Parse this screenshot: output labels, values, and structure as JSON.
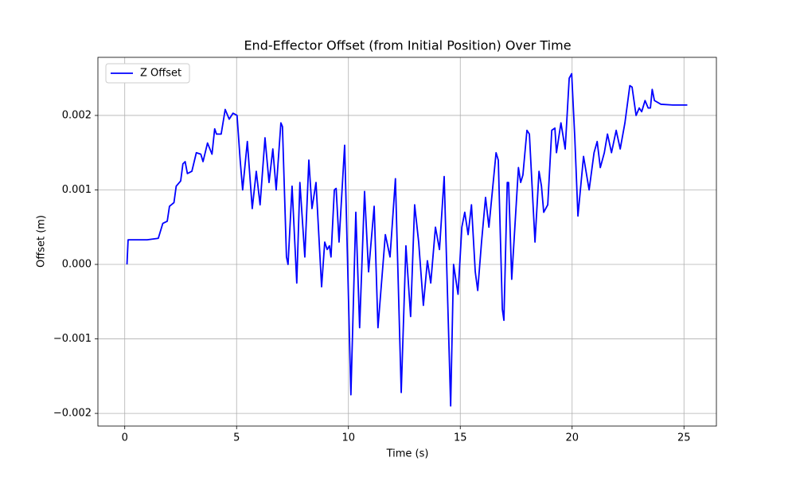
{
  "chart_data": {
    "type": "line",
    "title": "End-Effector Offset (from Initial Position) Over Time",
    "xlabel": "Time (s)",
    "ylabel": "Offset (m)",
    "x": [
      0.1,
      0.15,
      0.3,
      1.0,
      1.5,
      1.7,
      1.9,
      2.0,
      2.2,
      2.3,
      2.5,
      2.6,
      2.7,
      2.8,
      3.0,
      3.2,
      3.4,
      3.5,
      3.7,
      3.9,
      4.02,
      4.1,
      4.31,
      4.49,
      4.67,
      4.84,
      5.02,
      5.16,
      5.27,
      5.48,
      5.7,
      5.88,
      6.05,
      6.27,
      6.45,
      6.62,
      6.77,
      6.98,
      7.05,
      7.23,
      7.3,
      7.48,
      7.69,
      7.83,
      8.05,
      8.23,
      8.37,
      8.55,
      8.8,
      8.94,
      9.05,
      9.15,
      9.22,
      9.37,
      9.45,
      9.58,
      9.83,
      10.11,
      10.33,
      10.5,
      10.72,
      10.9,
      11.15,
      11.32,
      11.65,
      11.86,
      12.1,
      12.36,
      12.57,
      12.78,
      12.96,
      13.14,
      13.35,
      13.53,
      13.68,
      13.89,
      14.07,
      14.28,
      14.57,
      14.7,
      14.9,
      15.07,
      15.2,
      15.35,
      15.5,
      15.67,
      15.78,
      15.95,
      16.13,
      16.28,
      16.6,
      16.7,
      16.88,
      16.95,
      17.1,
      17.16,
      17.3,
      17.6,
      17.7,
      17.8,
      17.98,
      18.09,
      18.34,
      18.52,
      18.63,
      18.73,
      18.91,
      19.09,
      19.23,
      19.3,
      19.5,
      19.69,
      19.87,
      19.98,
      20.12,
      20.26,
      20.51,
      20.76,
      20.98,
      21.12,
      21.26,
      21.44,
      21.58,
      21.76,
      21.97,
      22.15,
      22.36,
      22.58,
      22.68,
      22.86,
      23.0,
      23.11,
      23.26,
      23.4,
      23.5,
      23.58,
      23.68,
      23.97,
      24.5,
      25.15
    ],
    "series": [
      {
        "name": "Z Offset",
        "color": "#0000ff",
        "values": [
          0.0,
          0.00033,
          0.00033,
          0.00033,
          0.00035,
          0.00055,
          0.00058,
          0.00078,
          0.00083,
          0.00105,
          0.00112,
          0.00135,
          0.00138,
          0.00122,
          0.00125,
          0.0015,
          0.00148,
          0.00138,
          0.00163,
          0.00148,
          0.00182,
          0.00175,
          0.00175,
          0.00208,
          0.00195,
          0.00203,
          0.002,
          0.0014,
          0.001,
          0.00165,
          0.00075,
          0.00125,
          0.0008,
          0.0017,
          0.0011,
          0.00155,
          0.001,
          0.0019,
          0.00185,
          0.0001,
          0.0,
          0.00105,
          -0.00025,
          0.0011,
          0.0001,
          0.0014,
          0.00075,
          0.0011,
          -0.0003,
          0.0003,
          0.0002,
          0.00025,
          0.0001,
          0.001,
          0.00102,
          0.0003,
          0.0016,
          -0.00175,
          0.0007,
          -0.00085,
          0.00098,
          -0.0001,
          0.00078,
          -0.00085,
          0.0004,
          0.0001,
          0.00115,
          -0.00172,
          0.00025,
          -0.0007,
          0.0008,
          0.0003,
          -0.00055,
          5e-05,
          -0.00025,
          0.0005,
          0.0002,
          0.00118,
          -0.0019,
          0.0,
          -0.0004,
          0.0005,
          0.0007,
          0.0004,
          0.0008,
          -0.0001,
          -0.00035,
          0.0003,
          0.0009,
          0.0005,
          0.0015,
          0.0014,
          -0.0006,
          -0.00075,
          0.0011,
          0.0011,
          -0.0002,
          0.0013,
          0.0011,
          0.0012,
          0.0018,
          0.00175,
          0.0003,
          0.00125,
          0.00105,
          0.0007,
          0.0008,
          0.0018,
          0.00183,
          0.0015,
          0.0019,
          0.00155,
          0.0025,
          0.00256,
          0.0017,
          0.00065,
          0.00145,
          0.001,
          0.0015,
          0.00165,
          0.0013,
          0.0015,
          0.00175,
          0.0015,
          0.0018,
          0.00155,
          0.0019,
          0.0024,
          0.00238,
          0.002,
          0.0021,
          0.00205,
          0.0022,
          0.0021,
          0.0021,
          0.00235,
          0.0022,
          0.00215,
          0.00214,
          0.00214
        ]
      }
    ],
    "xlim": [
      -1.2,
      26.45
    ],
    "xticks": [
      0,
      5,
      10,
      15,
      20,
      25
    ],
    "ylim": [
      -0.00217,
      0.00278
    ],
    "yticks": [
      {
        "value": -0.002,
        "label": "−0.002"
      },
      {
        "value": -0.001,
        "label": "−0.001"
      },
      {
        "value": 0,
        "label": "0.000"
      },
      {
        "value": 0.001,
        "label": "0.001"
      },
      {
        "value": 0.002,
        "label": "0.002"
      }
    ],
    "grid": true,
    "legend": "upper left"
  }
}
